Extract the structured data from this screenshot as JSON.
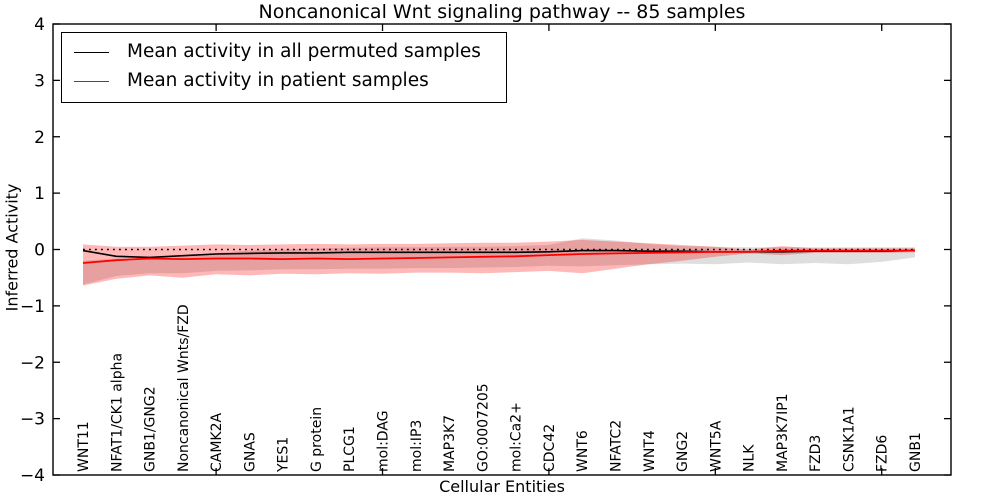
{
  "figure": {
    "title": "Noncanonical Wnt signaling pathway -- 85 samples",
    "x_axis_title": "Cellular Entities",
    "y_axis_title": "Inferred Activity"
  },
  "chart_data": {
    "type": "line",
    "title": "Noncanonical Wnt signaling pathway -- 85 samples",
    "xlabel": "Cellular Entities",
    "ylabel": "Inferred Activity",
    "ylim": [
      -4,
      4
    ],
    "grid": false,
    "legend_position": "upper left",
    "y_ticks": [
      {
        "v": 4,
        "label": "4"
      },
      {
        "v": 3,
        "label": "3"
      },
      {
        "v": 2,
        "label": "2"
      },
      {
        "v": 1,
        "label": "1"
      },
      {
        "v": 0,
        "label": "0"
      },
      {
        "v": -1,
        "label": "−1"
      },
      {
        "v": -2,
        "label": "−2"
      },
      {
        "v": -3,
        "label": "−3"
      },
      {
        "v": -4,
        "label": "−4"
      }
    ],
    "x_tick_indices": [
      4,
      9,
      14,
      19,
      24
    ],
    "categories": [
      "WNT11",
      "NFAT1/CK1 alpha",
      "GNB1/GNG2",
      "Noncanonical Wnts/FZD",
      "CAMK2A",
      "GNAS",
      "YES1",
      "G protein",
      "PLCG1",
      "mol:DAG",
      "mol:IP3",
      "MAP3K7",
      "GO:0007205",
      "mol:Ca2+",
      "CDC42",
      "WNT6",
      "NFATC2",
      "WNT4",
      "GNG2",
      "WNT5A",
      "NLK",
      "MAP3K7IP1",
      "FZD3",
      "CSNK1A1",
      "FZD6",
      "GNB1"
    ],
    "zero_line": {
      "y": 0,
      "style": "dotted",
      "color": "#000000"
    },
    "series": [
      {
        "name": "Mean activity in all permuted samples",
        "color": "#000000",
        "values": [
          -0.02,
          -0.12,
          -0.14,
          -0.11,
          -0.08,
          -0.07,
          -0.06,
          -0.06,
          -0.05,
          -0.05,
          -0.05,
          -0.05,
          -0.05,
          -0.05,
          -0.04,
          -0.02,
          -0.02,
          -0.03,
          -0.03,
          -0.04,
          -0.04,
          -0.04,
          -0.03,
          -0.03,
          -0.03,
          -0.02
        ]
      },
      {
        "name": "Mean activity in patient samples",
        "color": "#ff0000",
        "values": [
          -0.24,
          -0.19,
          -0.16,
          -0.17,
          -0.16,
          -0.16,
          -0.17,
          -0.16,
          -0.17,
          -0.16,
          -0.15,
          -0.14,
          -0.13,
          -0.12,
          -0.1,
          -0.08,
          -0.07,
          -0.06,
          -0.05,
          -0.04,
          -0.04,
          -0.02,
          -0.02,
          -0.02,
          -0.02,
          -0.02
        ]
      }
    ],
    "bands": [
      {
        "name": "permuted-samples-std-band",
        "fill": "rgba(0,0,0,0.13)",
        "upper": [
          -0.2,
          -0.16,
          -0.16,
          -0.13,
          -0.06,
          -0.02,
          0.0,
          0.02,
          0.03,
          0.04,
          0.04,
          0.05,
          0.05,
          0.06,
          0.08,
          0.2,
          0.16,
          0.1,
          0.06,
          0.05,
          0.04,
          0.04,
          0.04,
          0.04,
          0.04,
          0.04
        ],
        "lower": [
          -0.62,
          -0.47,
          -0.42,
          -0.42,
          -0.38,
          -0.37,
          -0.35,
          -0.35,
          -0.34,
          -0.34,
          -0.33,
          -0.33,
          -0.32,
          -0.31,
          -0.29,
          -0.3,
          -0.28,
          -0.26,
          -0.25,
          -0.26,
          -0.23,
          -0.26,
          -0.24,
          -0.26,
          -0.22,
          -0.14
        ]
      },
      {
        "name": "patient-samples-std-band",
        "fill": "rgba(255,0,0,0.28)",
        "upper": [
          0.09,
          0.05,
          0.05,
          0.07,
          0.09,
          0.08,
          0.09,
          0.1,
          0.09,
          0.1,
          0.1,
          0.11,
          0.12,
          0.12,
          0.14,
          0.17,
          0.14,
          0.11,
          0.08,
          0.05,
          0.0,
          0.06,
          0.02,
          0.02,
          0.02,
          0.02
        ],
        "lower": [
          -0.64,
          -0.52,
          -0.46,
          -0.5,
          -0.44,
          -0.46,
          -0.43,
          -0.44,
          -0.42,
          -0.43,
          -0.41,
          -0.41,
          -0.42,
          -0.4,
          -0.38,
          -0.42,
          -0.34,
          -0.26,
          -0.2,
          -0.13,
          -0.07,
          -0.1,
          -0.06,
          -0.06,
          -0.06,
          -0.05
        ]
      }
    ]
  }
}
